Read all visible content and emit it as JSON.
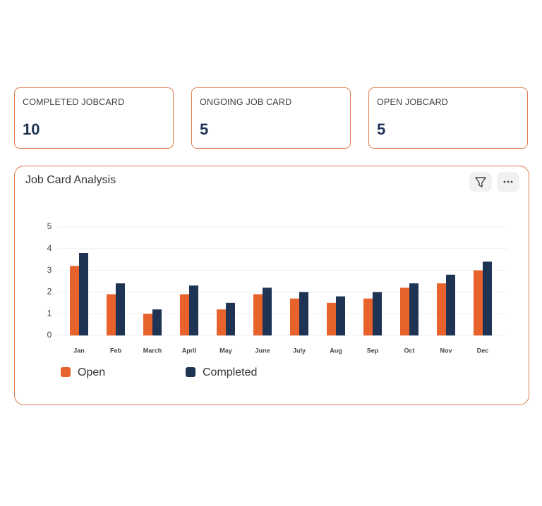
{
  "cards": [
    {
      "label": "COMPLETED JOBCARD",
      "value": 10
    },
    {
      "label": "ONGOING JOB CARD",
      "value": 5
    },
    {
      "label": "OPEN JOBCARD",
      "value": 5
    }
  ],
  "chart_data": {
    "type": "bar",
    "title": "Job Card Analysis",
    "categories": [
      "Jan",
      "Feb",
      "March",
      "April",
      "May",
      "June",
      "July",
      "Aug",
      "Sep",
      "Oct",
      "Nov",
      "Dec"
    ],
    "series": [
      {
        "name": "Open",
        "color": "#e8622c",
        "values": [
          3.2,
          1.9,
          1.0,
          1.9,
          1.2,
          1.9,
          1.7,
          1.5,
          1.7,
          2.2,
          2.4,
          3.0
        ]
      },
      {
        "name": "Completed",
        "color": "#1f3354",
        "values": [
          3.8,
          2.4,
          1.2,
          2.3,
          1.5,
          2.2,
          2.0,
          1.8,
          2.0,
          2.4,
          2.8,
          3.4
        ]
      }
    ],
    "ylim": [
      0,
      5
    ],
    "yticks": [
      0,
      1,
      2,
      3,
      4,
      5
    ],
    "grid": true
  }
}
